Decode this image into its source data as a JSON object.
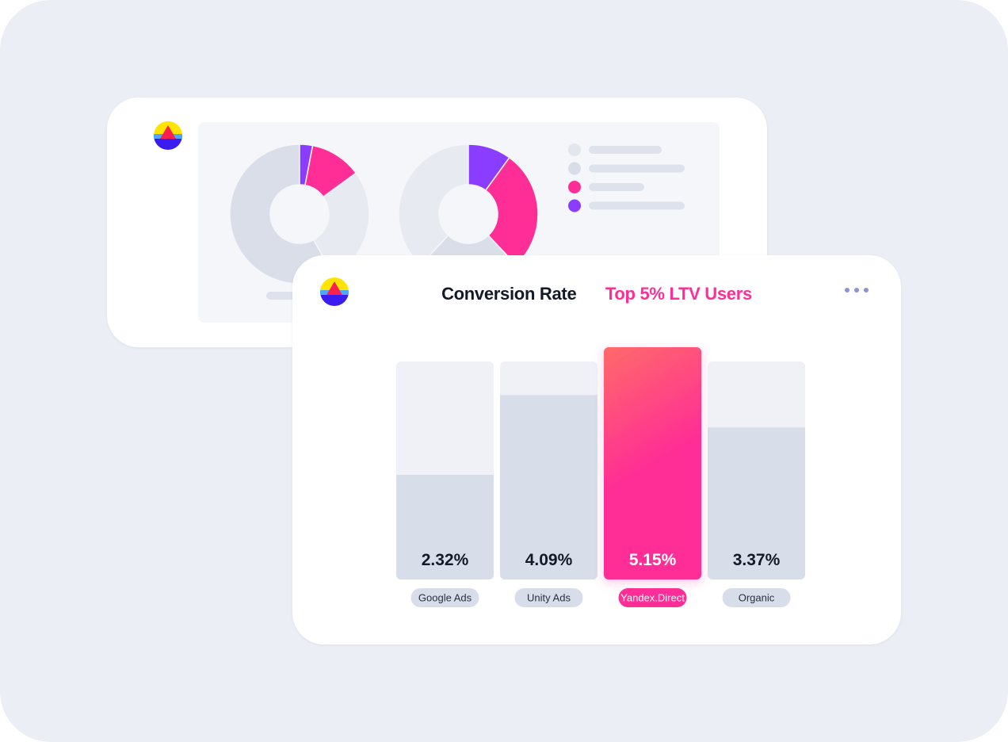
{
  "header": {
    "title": "Conversion Rate",
    "subtitle": "Top 5% LTV Users"
  },
  "back_card": {
    "legend_colors": [
      "#e2e6ee",
      "#d8dde8",
      "#ff2d96",
      "#8b3dff"
    ],
    "donuts": [
      {
        "segments": [
          {
            "value": 3,
            "color": "#8b3dff"
          },
          {
            "value": 12,
            "color": "#ff2d96"
          },
          {
            "value": 27,
            "color": "#e7eaf1"
          },
          {
            "value": 58,
            "color": "#d9dee8"
          }
        ]
      },
      {
        "segments": [
          {
            "value": 10,
            "color": "#8b3dff"
          },
          {
            "value": 28,
            "color": "#ff2d96"
          },
          {
            "value": 24,
            "color": "#d9dee8"
          },
          {
            "value": 38,
            "color": "#e7eaf1"
          }
        ]
      }
    ]
  },
  "colors": {
    "accent": "#ff2d96",
    "accent_top": "#ff6a6a",
    "bar_fill": "#d8dee9",
    "bar_track": "#eff1f6",
    "label_pill": "#d8dee9",
    "text_dark": "#141928"
  },
  "chart_data": {
    "type": "bar",
    "title": "Conversion Rate",
    "subtitle": "Top 5% LTV Users",
    "categories": [
      "Google Ads",
      "Unity Ads",
      "Yandex.Direct",
      "Organic"
    ],
    "values": [
      2.32,
      4.09,
      5.15,
      3.37
    ],
    "value_labels": [
      "2.32%",
      "4.09%",
      "5.15%",
      "3.37%"
    ],
    "highlight": "Yandex.Direct",
    "ylim": [
      0,
      5.15
    ],
    "grid": false,
    "xlabel": "",
    "ylabel": ""
  }
}
